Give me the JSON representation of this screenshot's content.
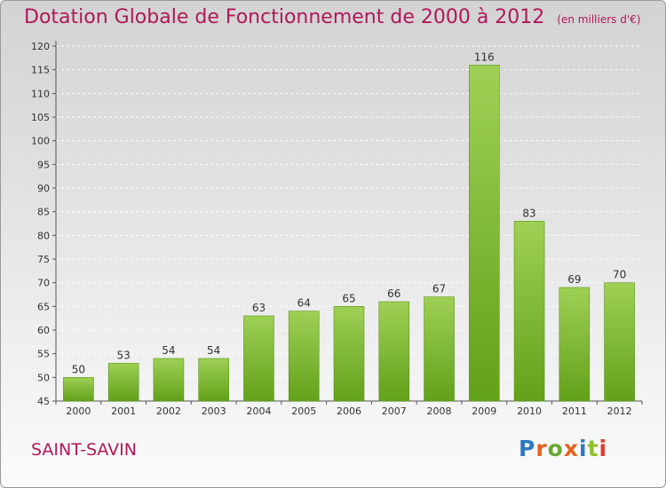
{
  "title": "Dotation Globale de Fonctionnement de 2000 à 2012",
  "subtitle": "(en milliers d'€)",
  "commune": "SAINT-SAVIN",
  "logo": {
    "text": "Proxiti",
    "letter_colors": [
      "#2b78c2",
      "#e8611e",
      "#6aa832",
      "#e8611e",
      "#2b78c2",
      "#8fbf2a",
      "#e33a2e"
    ]
  },
  "colors": {
    "bar_top": "#9fd055",
    "bar_bottom": "#62a11a",
    "title": "#b0185a",
    "grid": "#ffffff"
  },
  "chart_data": {
    "type": "bar",
    "categories": [
      "2000",
      "2001",
      "2002",
      "2003",
      "2004",
      "2005",
      "2006",
      "2007",
      "2008",
      "2009",
      "2010",
      "2011",
      "2012"
    ],
    "values": [
      50,
      53,
      54,
      54,
      63,
      64,
      65,
      66,
      67,
      116,
      83,
      69,
      70
    ],
    "ylim": [
      45,
      120
    ],
    "yticks": [
      45,
      50,
      55,
      60,
      65,
      70,
      75,
      80,
      85,
      90,
      95,
      100,
      105,
      110,
      115,
      120
    ],
    "title": "Dotation Globale de Fonctionnement de 2000 à 2012",
    "xlabel": "",
    "ylabel": "",
    "grid": "dashed horizontal",
    "data_labels": true
  }
}
